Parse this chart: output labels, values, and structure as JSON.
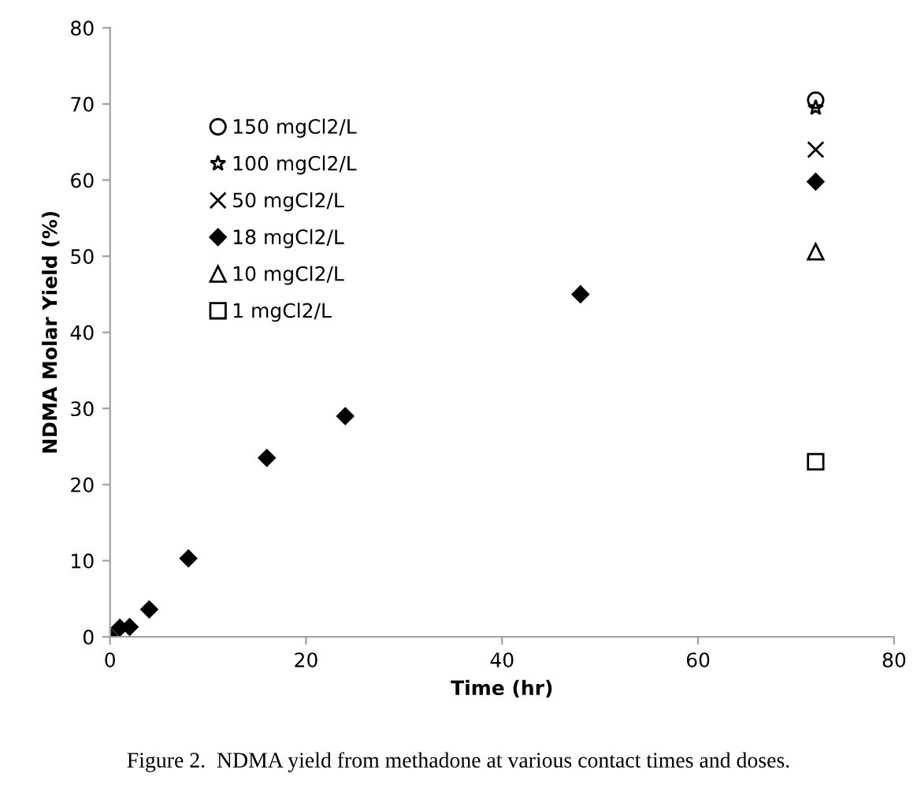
{
  "chart_data": {
    "type": "scatter",
    "xlabel": "Time (hr)",
    "ylabel": "NDMA Molar Yield (%)",
    "xlim": [
      0,
      80
    ],
    "xticks": [
      0,
      20,
      40,
      60,
      80
    ],
    "ylim": [
      0,
      80
    ],
    "yticks": [
      0,
      10,
      20,
      30,
      40,
      50,
      60,
      70,
      80
    ],
    "grid": false,
    "legend": "top left",
    "annotations": [
      "Figure 2.  NDMA yield from methadone at various contact times and doses."
    ],
    "series": [
      {
        "name": "150 mgCl2/L",
        "color": "#000000",
        "marker": "circle",
        "x": [
          72
        ],
        "values": [
          70.5
        ]
      },
      {
        "name": "100 mgCl2/L",
        "color": "#000000",
        "marker": "star",
        "x": [
          72
        ],
        "values": [
          69.5
        ]
      },
      {
        "name": "50 mgCl2/L",
        "color": "#000000",
        "marker": "cross",
        "x": [
          72
        ],
        "values": [
          64
        ]
      },
      {
        "name": "18 mgCl2/L",
        "color": "#000000",
        "marker": "diamond",
        "x": [
          0,
          1,
          2,
          4,
          8,
          16,
          24,
          48,
          72
        ],
        "values": [
          0,
          1.2,
          1.3,
          3.6,
          10.3,
          23.5,
          29,
          45,
          59.8
        ]
      },
      {
        "name": "10 mgCl2/L",
        "color": "#000000",
        "marker": "triangle",
        "x": [
          72
        ],
        "values": [
          50.6
        ]
      },
      {
        "name": "1 mgCl2/L",
        "color": "#000000",
        "marker": "square",
        "x": [
          72
        ],
        "values": [
          23
        ]
      }
    ]
  }
}
